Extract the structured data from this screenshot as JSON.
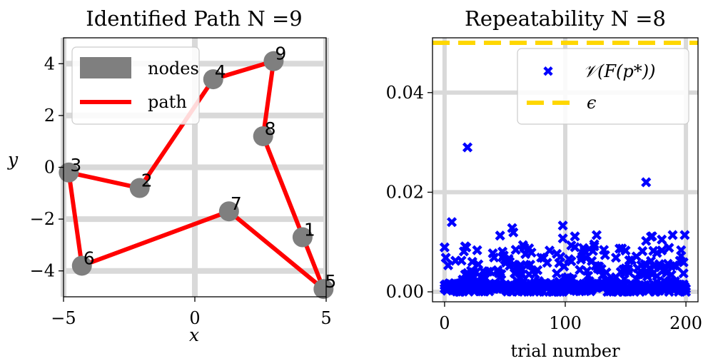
{
  "chart_data": [
    {
      "type": "scatter",
      "title": "Identified Path N =9",
      "xlabel": "x",
      "ylabel": "y",
      "xlim": [
        -5,
        5
      ],
      "ylim": [
        -5,
        5
      ],
      "xticks": [
        -5,
        0,
        5
      ],
      "xtick_labels": [
        "−5",
        "0",
        "5"
      ],
      "yticks": [
        -4,
        -2,
        0,
        2,
        4
      ],
      "ytick_labels": [
        "−4",
        "−2",
        "0",
        "2",
        "4"
      ],
      "grid": true,
      "legend": {
        "placement": "top-left",
        "entries": [
          "nodes",
          "path"
        ]
      },
      "nodes": [
        {
          "label": "1",
          "x": 4.1,
          "y": -2.7
        },
        {
          "label": "2",
          "x": -2.1,
          "y": -0.8
        },
        {
          "label": "3",
          "x": -4.8,
          "y": -0.2
        },
        {
          "label": "4",
          "x": 0.7,
          "y": 3.4
        },
        {
          "label": "5",
          "x": 4.9,
          "y": -4.7
        },
        {
          "label": "6",
          "x": -4.3,
          "y": -3.8
        },
        {
          "label": "7",
          "x": 1.3,
          "y": -1.7
        },
        {
          "label": "8",
          "x": 2.6,
          "y": 1.2
        },
        {
          "label": "9",
          "x": 3.0,
          "y": 4.1
        }
      ],
      "path_order": [
        9,
        4,
        2,
        3,
        6,
        7,
        5,
        8,
        9
      ],
      "colors": {
        "nodes": "#7f7f7f",
        "path": "#ff0000"
      }
    },
    {
      "type": "scatter",
      "title": "Repeatability N =8",
      "xlabel": "trial number",
      "ylabel": "",
      "xlim": [
        -10,
        210
      ],
      "ylim": [
        -0.002,
        0.051
      ],
      "xticks": [
        0,
        100,
        200
      ],
      "xtick_labels": [
        "0",
        "100",
        "200"
      ],
      "yticks": [
        0,
        0.02,
        0.04
      ],
      "ytick_labels": [
        "0.00",
        "0.02",
        "0.04"
      ],
      "grid": true,
      "epsilon": 0.05,
      "legend": {
        "placement": "top-right",
        "entries": [
          "𝒱(F(p*))",
          "ϵ"
        ]
      },
      "colors": {
        "points": "#0000ff",
        "epsilon": "#ffd700"
      },
      "series_note_points": "approx. 1-2 points per trial, values mostly 0.000-0.012",
      "outliers": [
        {
          "x": 19,
          "y": 0.029
        },
        {
          "x": 167,
          "y": 0.022
        },
        {
          "x": 6,
          "y": 0.014
        },
        {
          "x": 98,
          "y": 0.0133
        },
        {
          "x": 56,
          "y": 0.0128
        }
      ]
    }
  ]
}
